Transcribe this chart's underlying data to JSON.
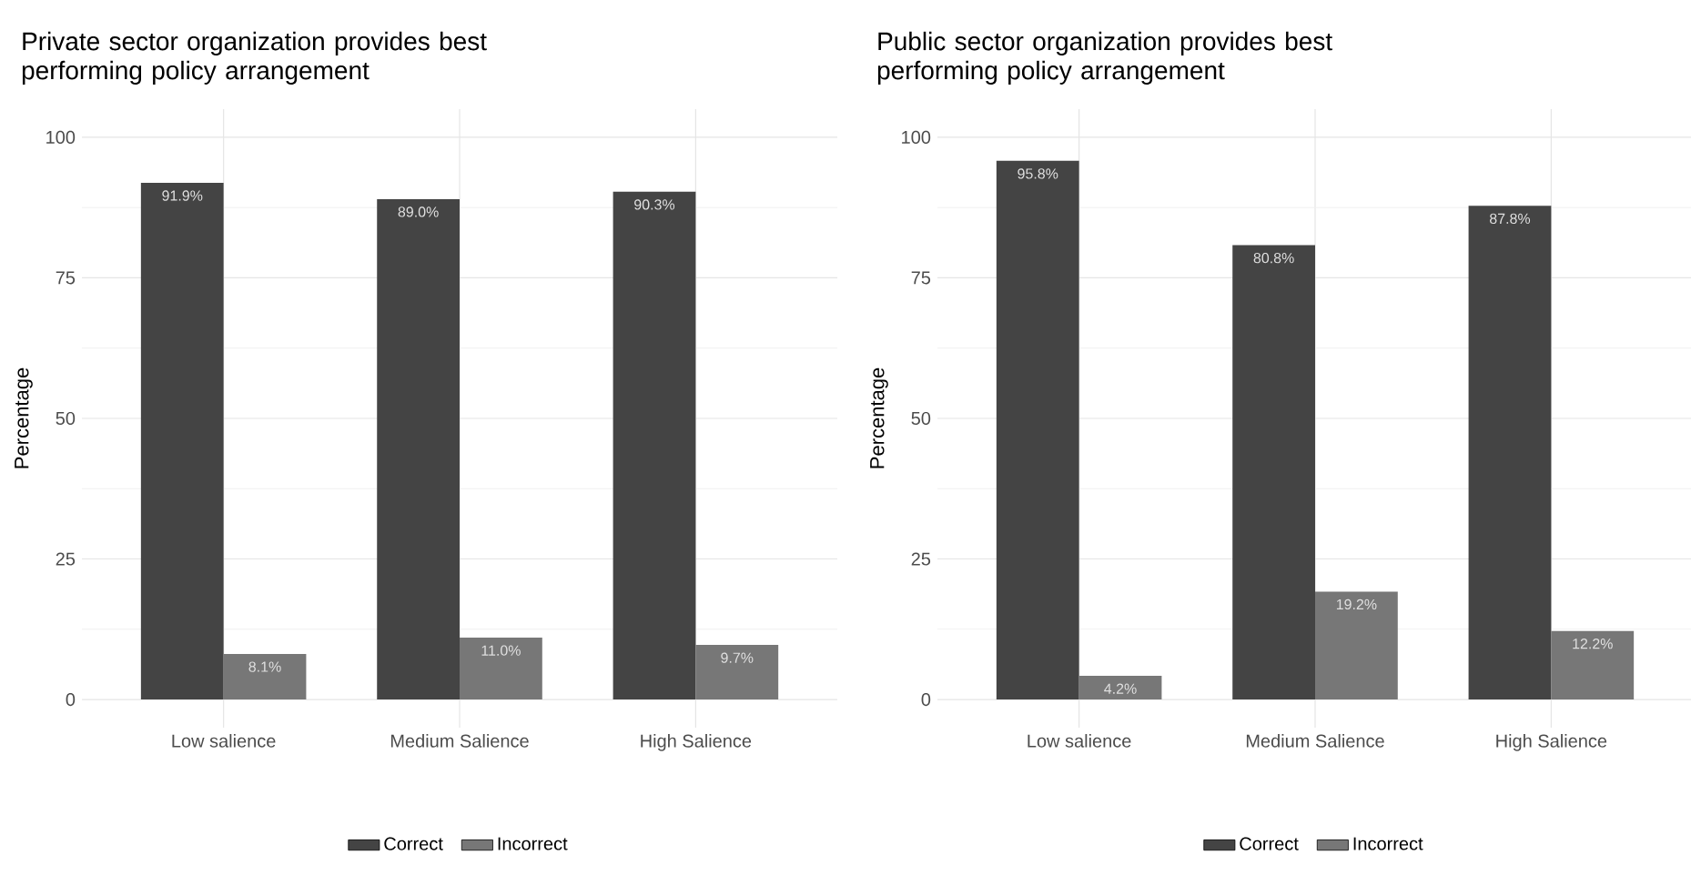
{
  "chart_data": [
    {
      "type": "bar",
      "title": "Private sector organization provides best performing policy arrangement",
      "ylabel": "Percentage",
      "categories": [
        "Low salience",
        "Medium Salience",
        "High Salience"
      ],
      "series": [
        {
          "name": "Correct",
          "color": "#444444",
          "values": [
            91.9,
            89.0,
            90.3
          ],
          "value_labels": [
            "91.9%",
            "89.0%",
            "90.3%"
          ]
        },
        {
          "name": "Incorrect",
          "color": "#777777",
          "values": [
            8.1,
            11.0,
            9.7
          ],
          "value_labels": [
            "8.1%",
            "11.0%",
            "9.7%"
          ]
        }
      ],
      "ylim": [
        -5,
        105
      ],
      "yticks": [
        0,
        25,
        50,
        75,
        100
      ],
      "grid": true,
      "legend": "bottom"
    },
    {
      "type": "bar",
      "title": "Public sector organization provides best performing policy arrangement",
      "ylabel": "Percentage",
      "categories": [
        "Low salience",
        "Medium Salience",
        "High Salience"
      ],
      "series": [
        {
          "name": "Correct",
          "color": "#444444",
          "values": [
            95.8,
            80.8,
            87.8
          ],
          "value_labels": [
            "95.8%",
            "80.8%",
            "87.8%"
          ]
        },
        {
          "name": "Incorrect",
          "color": "#777777",
          "values": [
            4.2,
            19.2,
            12.2
          ],
          "value_labels": [
            "4.2%",
            "19.2%",
            "12.2%"
          ]
        }
      ],
      "ylim": [
        -5,
        105
      ],
      "yticks": [
        0,
        25,
        50,
        75,
        100
      ],
      "grid": true,
      "legend": "bottom"
    }
  ]
}
